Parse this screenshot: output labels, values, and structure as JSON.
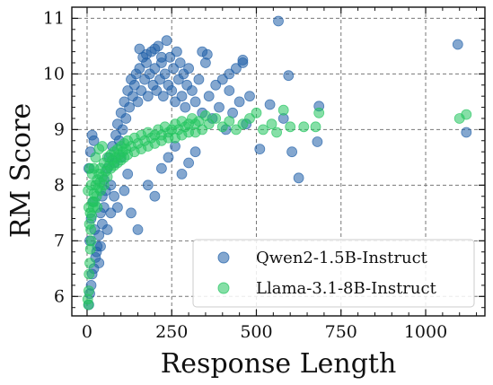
{
  "chart_data": {
    "type": "scatter",
    "xlabel": "Response Length",
    "ylabel": "RM Score",
    "xlim": [
      -45,
      1175
    ],
    "ylim": [
      5.65,
      11.2
    ],
    "xticks": [
      0,
      250,
      500,
      750,
      1000
    ],
    "yticks": [
      6,
      7,
      8,
      9,
      10,
      11
    ],
    "grid": true,
    "legend_position": "lower-right",
    "series": [
      {
        "name": "Qwen2-1.5B-Instruct",
        "color": "#1f5fa8",
        "points": [
          [
            5,
            5.85
          ],
          [
            8,
            6.05
          ],
          [
            12,
            6.2
          ],
          [
            15,
            6.4
          ],
          [
            20,
            6.5
          ],
          [
            25,
            6.7
          ],
          [
            30,
            6.9
          ],
          [
            10,
            8.6
          ],
          [
            15,
            8.9
          ],
          [
            20,
            8.8
          ],
          [
            5,
            8.3
          ],
          [
            8,
            7.0
          ],
          [
            12,
            7.4
          ],
          [
            18,
            7.7
          ],
          [
            22,
            7.2
          ],
          [
            28,
            6.8
          ],
          [
            35,
            7.1
          ],
          [
            40,
            7.5
          ],
          [
            45,
            7.8
          ],
          [
            50,
            8.1
          ],
          [
            55,
            7.9
          ],
          [
            60,
            8.3
          ],
          [
            65,
            8.5
          ],
          [
            70,
            8.0
          ],
          [
            75,
            8.7
          ],
          [
            80,
            8.4
          ],
          [
            85,
            8.9
          ],
          [
            90,
            9.1
          ],
          [
            95,
            8.8
          ],
          [
            100,
            9.3
          ],
          [
            105,
            9.0
          ],
          [
            110,
            9.5
          ],
          [
            115,
            9.2
          ],
          [
            120,
            9.7
          ],
          [
            125,
            9.4
          ],
          [
            130,
            9.9
          ],
          [
            135,
            9.6
          ],
          [
            140,
            9.8
          ],
          [
            145,
            10.0
          ],
          [
            150,
            9.5
          ],
          [
            155,
            10.1
          ],
          [
            160,
            9.7
          ],
          [
            165,
            10.3
          ],
          [
            170,
            9.9
          ],
          [
            175,
            10.2
          ],
          [
            180,
            9.6
          ],
          [
            185,
            10.0
          ],
          [
            190,
            10.4
          ],
          [
            195,
            9.8
          ],
          [
            200,
            10.1
          ],
          [
            205,
            9.7
          ],
          [
            210,
            10.5
          ],
          [
            215,
            9.9
          ],
          [
            220,
            10.2
          ],
          [
            225,
            9.6
          ],
          [
            230,
            10.0
          ],
          [
            235,
            10.6
          ],
          [
            240,
            9.8
          ],
          [
            245,
            10.3
          ],
          [
            250,
            9.7
          ],
          [
            255,
            10.1
          ],
          [
            260,
            9.5
          ],
          [
            265,
            10.4
          ],
          [
            270,
            9.9
          ],
          [
            275,
            10.2
          ],
          [
            280,
            9.6
          ],
          [
            285,
            10.0
          ],
          [
            290,
            9.4
          ],
          [
            295,
            9.8
          ],
          [
            300,
            10.1
          ],
          [
            310,
            9.7
          ],
          [
            320,
            9.5
          ],
          [
            330,
            9.9
          ],
          [
            340,
            9.3
          ],
          [
            350,
            10.2
          ],
          [
            360,
            9.6
          ],
          [
            370,
            9.2
          ],
          [
            155,
            10.45
          ],
          [
            175,
            10.35
          ],
          [
            200,
            10.45
          ],
          [
            220,
            10.3
          ],
          [
            340,
            10.4
          ],
          [
            355,
            10.35
          ],
          [
            380,
            9.8
          ],
          [
            390,
            9.4
          ],
          [
            400,
            9.9
          ],
          [
            410,
            9.0
          ],
          [
            420,
            9.7
          ],
          [
            430,
            9.3
          ],
          [
            440,
            10.1
          ],
          [
            450,
            9.5
          ],
          [
            460,
            10.2
          ],
          [
            470,
            9.1
          ],
          [
            480,
            9.6
          ],
          [
            460,
            10.25
          ],
          [
            420,
            10.0
          ],
          [
            510,
            8.65
          ],
          [
            540,
            9.45
          ],
          [
            580,
            9.2
          ],
          [
            595,
            9.97
          ],
          [
            605,
            8.6
          ],
          [
            625,
            8.13
          ],
          [
            565,
            10.95
          ],
          [
            680,
            8.78
          ],
          [
            685,
            9.42
          ],
          [
            1095,
            10.53
          ],
          [
            1120,
            8.95
          ],
          [
            300,
            8.4
          ],
          [
            320,
            8.6
          ],
          [
            280,
            8.2
          ],
          [
            260,
            8.7
          ],
          [
            240,
            8.5
          ],
          [
            150,
            7.2
          ],
          [
            130,
            7.5
          ],
          [
            120,
            8.2
          ],
          [
            100,
            8.5
          ],
          [
            180,
            8.0
          ],
          [
            200,
            7.8
          ],
          [
            220,
            8.3
          ],
          [
            110,
            7.9
          ],
          [
            90,
            7.6
          ],
          [
            60,
            7.2
          ],
          [
            50,
            7.6
          ],
          [
            40,
            6.9
          ],
          [
            35,
            6.6
          ],
          [
            45,
            7.3
          ],
          [
            70,
            7.5
          ],
          [
            80,
            7.8
          ]
        ]
      },
      {
        "name": "Llama-3.1-8B-Instruct",
        "color": "#22c55e",
        "points": [
          [
            2,
            5.95
          ],
          [
            4,
            5.85
          ],
          [
            5,
            6.1
          ],
          [
            6,
            6.4
          ],
          [
            8,
            6.6
          ],
          [
            10,
            6.85
          ],
          [
            12,
            7.0
          ],
          [
            3,
            7.9
          ],
          [
            5,
            7.6
          ],
          [
            7,
            7.3
          ],
          [
            9,
            7.5
          ],
          [
            11,
            7.2
          ],
          [
            14,
            7.45
          ],
          [
            16,
            7.7
          ],
          [
            18,
            7.6
          ],
          [
            20,
            7.85
          ],
          [
            22,
            7.7
          ],
          [
            25,
            8.0
          ],
          [
            28,
            7.8
          ],
          [
            30,
            8.1
          ],
          [
            33,
            7.95
          ],
          [
            35,
            8.2
          ],
          [
            38,
            8.05
          ],
          [
            40,
            8.3
          ],
          [
            45,
            8.15
          ],
          [
            50,
            8.4
          ],
          [
            55,
            8.25
          ],
          [
            60,
            8.5
          ],
          [
            65,
            8.35
          ],
          [
            70,
            8.55
          ],
          [
            75,
            8.45
          ],
          [
            80,
            8.6
          ],
          [
            85,
            8.5
          ],
          [
            90,
            8.65
          ],
          [
            95,
            8.55
          ],
          [
            100,
            8.7
          ],
          [
            105,
            8.6
          ],
          [
            110,
            8.75
          ],
          [
            115,
            8.65
          ],
          [
            120,
            8.8
          ],
          [
            130,
            8.7
          ],
          [
            140,
            8.85
          ],
          [
            150,
            8.75
          ],
          [
            160,
            8.9
          ],
          [
            170,
            8.8
          ],
          [
            180,
            8.95
          ],
          [
            190,
            8.85
          ],
          [
            200,
            8.9
          ],
          [
            210,
            9.0
          ],
          [
            220,
            8.9
          ],
          [
            230,
            9.05
          ],
          [
            240,
            8.95
          ],
          [
            250,
            9.0
          ],
          [
            260,
            9.1
          ],
          [
            270,
            9.0
          ],
          [
            280,
            9.15
          ],
          [
            290,
            9.05
          ],
          [
            300,
            9.1
          ],
          [
            310,
            9.2
          ],
          [
            320,
            9.1
          ],
          [
            330,
            9.15
          ],
          [
            340,
            9.0
          ],
          [
            350,
            9.25
          ],
          [
            360,
            9.1
          ],
          [
            380,
            9.2
          ],
          [
            400,
            9.05
          ],
          [
            420,
            9.15
          ],
          [
            440,
            9.0
          ],
          [
            460,
            9.1
          ],
          [
            480,
            9.2
          ],
          [
            500,
            9.3
          ],
          [
            520,
            9.0
          ],
          [
            545,
            9.1
          ],
          [
            560,
            8.95
          ],
          [
            580,
            9.35
          ],
          [
            600,
            9.05
          ],
          [
            640,
            9.05
          ],
          [
            675,
            9.05
          ],
          [
            685,
            9.3
          ],
          [
            1100,
            9.2
          ],
          [
            1120,
            9.27
          ],
          [
            15,
            8.2
          ],
          [
            25,
            8.5
          ],
          [
            35,
            8.65
          ],
          [
            45,
            8.7
          ],
          [
            8,
            8.3
          ],
          [
            12,
            8.0
          ],
          [
            20,
            8.3
          ],
          [
            30,
            7.6
          ],
          [
            40,
            7.9
          ],
          [
            50,
            8.0
          ],
          [
            60,
            8.15
          ],
          [
            70,
            8.3
          ],
          [
            80,
            8.35
          ],
          [
            90,
            8.4
          ],
          [
            100,
            8.45
          ],
          [
            110,
            8.5
          ],
          [
            120,
            8.55
          ],
          [
            140,
            8.6
          ],
          [
            160,
            8.65
          ],
          [
            180,
            8.7
          ],
          [
            200,
            8.75
          ],
          [
            220,
            8.8
          ],
          [
            240,
            8.85
          ],
          [
            260,
            8.85
          ],
          [
            280,
            8.9
          ],
          [
            300,
            8.95
          ],
          [
            320,
            8.95
          ]
        ]
      }
    ]
  }
}
